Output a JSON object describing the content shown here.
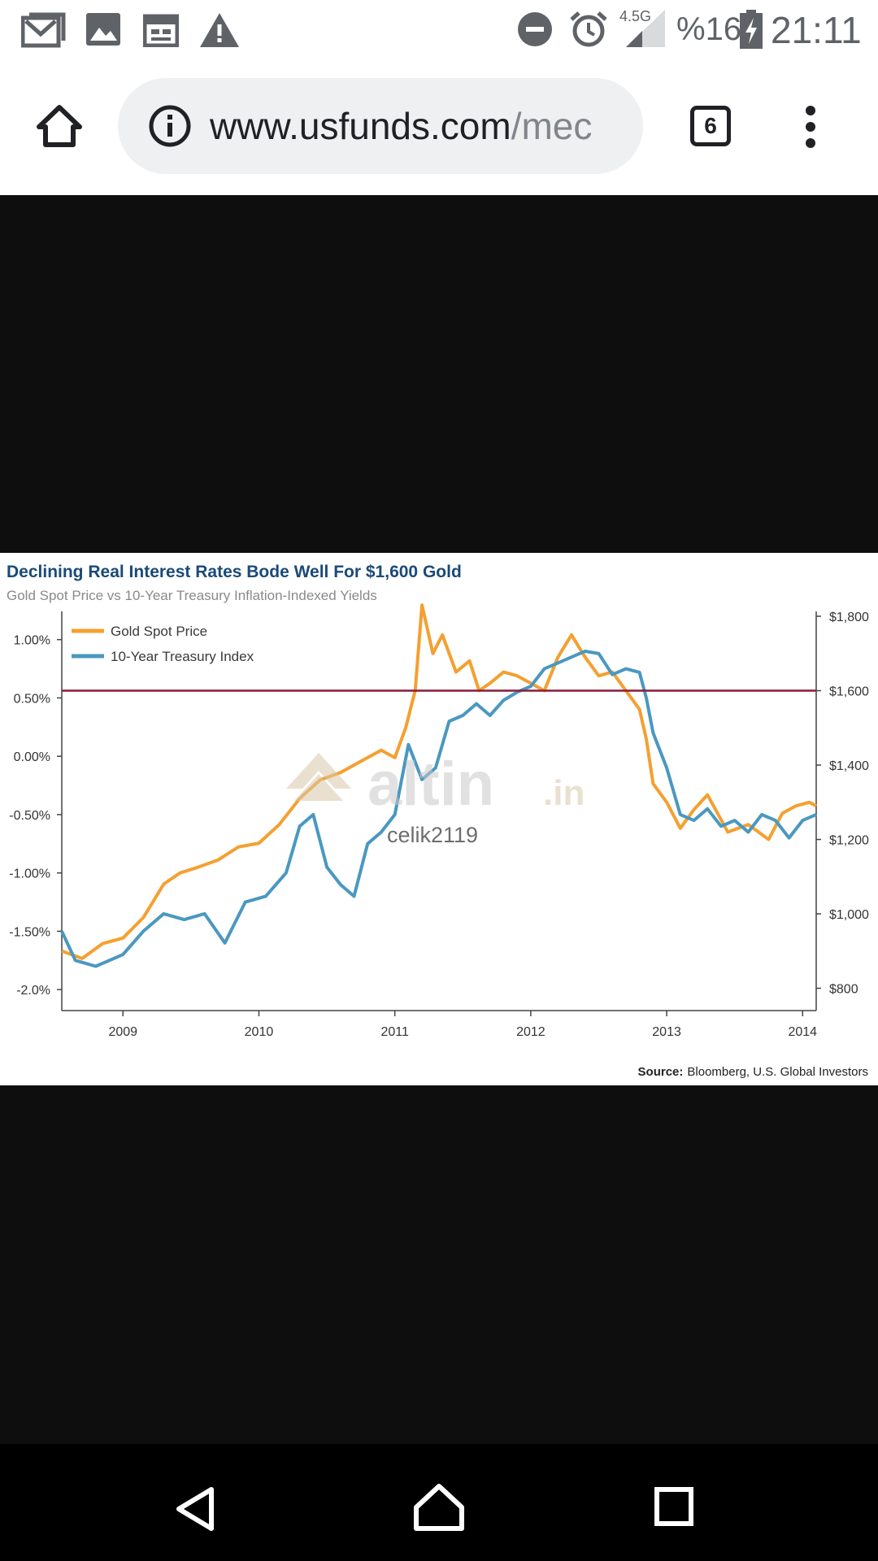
{
  "status_bar": {
    "network": "4.5G",
    "battery": "%16",
    "time": "21:11",
    "notification_icons": [
      "gmail-icon",
      "gallery-icon",
      "calendar-icon",
      "warning-icon"
    ],
    "system_icons": [
      "do-not-disturb-icon",
      "alarm-icon",
      "signal-icon",
      "battery-charging-icon"
    ]
  },
  "browser": {
    "url_host": "www.usfunds.com",
    "url_path": "/mec",
    "tab_count": "6",
    "icons": {
      "home": "home-icon",
      "info": "info-icon",
      "menu": "more-vert-icon"
    }
  },
  "watermark": {
    "brand_main": "altin",
    "brand_suffix": ".in",
    "user": "celik2119"
  },
  "chart_data": {
    "type": "line",
    "title": "Declining Real Interest Rates Bode Well For $1,600 Gold",
    "subtitle": "Gold Spot Price vs 10-Year Treasury Inflation-Indexed Yields",
    "source_label": "Source:",
    "source_text": "Bloomberg, U.S. Global Investors",
    "x_ticks": [
      "2009",
      "2010",
      "2011",
      "2012",
      "2013",
      "2014"
    ],
    "x_tick_values": [
      2009,
      2010,
      2011,
      2012,
      2013,
      2014
    ],
    "xlim": [
      2008.55,
      2014.1
    ],
    "y_left_ticks": [
      "1.00%",
      "0.50%",
      "0.00%",
      "-0.50%",
      "-1.00%",
      "-1.50%",
      "-2.0%"
    ],
    "y_left_values": [
      1.0,
      0.5,
      0.0,
      -0.5,
      -1.0,
      -1.5,
      -2.0
    ],
    "ylim_left": [
      -2.18,
      1.2
    ],
    "y_right_ticks": [
      "$1,800",
      "$1,600",
      "$1,400",
      "$1,200",
      "$1,000",
      "$800"
    ],
    "y_right_values": [
      1800,
      1600,
      1400,
      1200,
      1000,
      800
    ],
    "ylim_right": [
      740,
      1800
    ],
    "reference_line": {
      "axis": "right",
      "value": 1600,
      "color": "#8b1a3a"
    },
    "grid": false,
    "legend_position": "top-left",
    "series": [
      {
        "name": "Gold Spot Price",
        "axis": "right",
        "color": "#f4a030",
        "x": [
          2008.55,
          2008.7,
          2008.85,
          2009.0,
          2009.15,
          2009.3,
          2009.42,
          2009.55,
          2009.7,
          2009.85,
          2010.0,
          2010.15,
          2010.3,
          2010.45,
          2010.6,
          2010.75,
          2010.9,
          2011.0,
          2011.08,
          2011.15,
          2011.2,
          2011.28,
          2011.35,
          2011.45,
          2011.55,
          2011.62,
          2011.7,
          2011.8,
          2011.9,
          2012.0,
          2012.1,
          2012.2,
          2012.3,
          2012.4,
          2012.5,
          2012.6,
          2012.7,
          2012.8,
          2012.85,
          2012.9,
          2013.0,
          2013.1,
          2013.2,
          2013.3,
          2013.45,
          2013.6,
          2013.75,
          2013.85,
          2013.95,
          2014.05,
          2014.1
        ],
        "values": [
          900,
          880,
          920,
          935,
          990,
          1080,
          1110,
          1125,
          1145,
          1180,
          1190,
          1240,
          1310,
          1360,
          1380,
          1410,
          1440,
          1420,
          1500,
          1600,
          1830,
          1700,
          1750,
          1650,
          1680,
          1600,
          1620,
          1650,
          1640,
          1620,
          1600,
          1690,
          1750,
          1690,
          1640,
          1650,
          1600,
          1550,
          1470,
          1350,
          1300,
          1230,
          1280,
          1320,
          1220,
          1240,
          1200,
          1270,
          1290,
          1300,
          1290
        ]
      },
      {
        "name": "10-Year Treasury Index",
        "axis": "left",
        "color": "#4a98c0",
        "x": [
          2008.55,
          2008.65,
          2008.8,
          2009.0,
          2009.15,
          2009.3,
          2009.45,
          2009.6,
          2009.75,
          2009.9,
          2010.05,
          2010.2,
          2010.3,
          2010.4,
          2010.5,
          2010.6,
          2010.7,
          2010.8,
          2010.9,
          2011.0,
          2011.1,
          2011.2,
          2011.3,
          2011.4,
          2011.5,
          2011.6,
          2011.7,
          2011.8,
          2011.9,
          2012.0,
          2012.1,
          2012.2,
          2012.3,
          2012.4,
          2012.5,
          2012.6,
          2012.7,
          2012.8,
          2012.85,
          2012.9,
          2013.0,
          2013.1,
          2013.2,
          2013.3,
          2013.4,
          2013.5,
          2013.6,
          2013.7,
          2013.8,
          2013.9,
          2014.0,
          2014.1
        ],
        "values": [
          -1.5,
          -1.75,
          -1.8,
          -1.7,
          -1.5,
          -1.35,
          -1.4,
          -1.35,
          -1.6,
          -1.25,
          -1.2,
          -1.0,
          -0.6,
          -0.5,
          -0.95,
          -1.1,
          -1.2,
          -0.75,
          -0.65,
          -0.5,
          0.1,
          -0.2,
          -0.1,
          0.3,
          0.35,
          0.45,
          0.35,
          0.48,
          0.55,
          0.6,
          0.75,
          0.8,
          0.85,
          0.9,
          0.88,
          0.7,
          0.75,
          0.72,
          0.5,
          0.2,
          -0.1,
          -0.5,
          -0.55,
          -0.45,
          -0.6,
          -0.55,
          -0.65,
          -0.5,
          -0.55,
          -0.7,
          -0.55,
          -0.5
        ]
      }
    ]
  }
}
